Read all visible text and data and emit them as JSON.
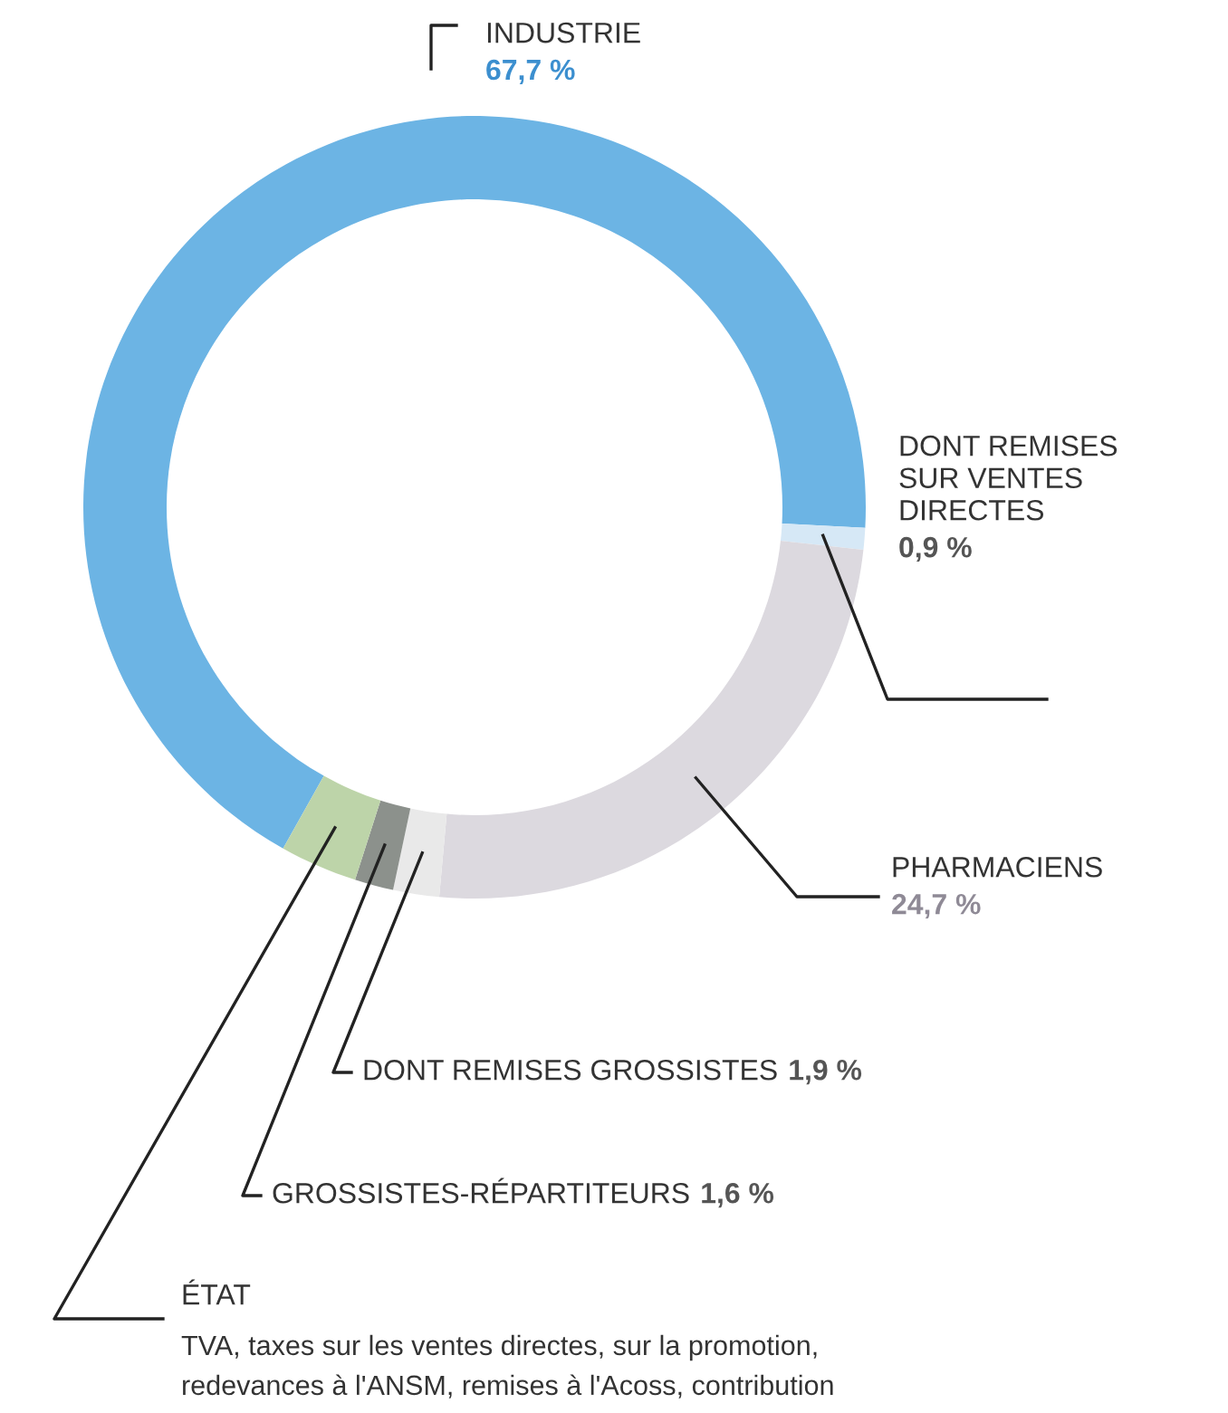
{
  "chart_data": {
    "type": "donut",
    "categories": [
      "INDUSTRIE",
      "DONT REMISES\nSUR VENTES\nDIRECTES",
      "PHARMACIENS",
      "DONT REMISES GROSSISTES",
      "GROSSISTES-RÉPARTITEURS",
      "ÉTAT"
    ],
    "values": [
      67.7,
      0.9,
      24.7,
      1.9,
      1.6,
      3.2
    ],
    "colors": [
      "#6cb4e4",
      "#d6e8f6",
      "#dcd9df",
      "#e9e9e9",
      "#8c918c",
      "#bdd4a9"
    ],
    "value_labels": [
      "67,7 %",
      "0,9 %",
      "24,7 %",
      "1,9 %",
      "1,6 %",
      null
    ],
    "annotations": [
      "TVA, taxes sur les ventes directes, sur la promotion,",
      "redevances à l'ANSM, remises à l'Acoss, contribution"
    ]
  }
}
